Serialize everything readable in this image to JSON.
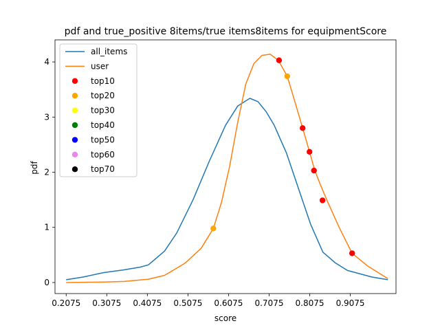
{
  "chart_data": {
    "type": "line",
    "title": "pdf and true_positive 8items/true items8items for equipmentScore",
    "xlabel": "score",
    "ylabel": "pdf",
    "xlim": [
      0.18,
      1.02
    ],
    "ylim": [
      -0.2,
      4.4
    ],
    "xticks": [
      0.2075,
      0.3075,
      0.4075,
      0.5075,
      0.6075,
      0.7075,
      0.8075,
      0.9075
    ],
    "xtick_labels": [
      "0.2075",
      "0.3075",
      "0.4075",
      "0.5075",
      "0.6075",
      "0.7075",
      "0.8075",
      "0.9075"
    ],
    "yticks": [
      0,
      1,
      2,
      3,
      4
    ],
    "ytick_labels": [
      "0",
      "1",
      "2",
      "3",
      "4"
    ],
    "grid": false,
    "legend_position": "top-left",
    "series": [
      {
        "name": "all_items",
        "kind": "line",
        "color": "#1f77b4",
        "x": [
          0.2075,
          0.25,
          0.3,
          0.35,
          0.39,
          0.41,
          0.45,
          0.48,
          0.52,
          0.56,
          0.6,
          0.63,
          0.66,
          0.68,
          0.7,
          0.72,
          0.75,
          0.78,
          0.81,
          0.84,
          0.87,
          0.9,
          0.92,
          0.96,
          1.0
        ],
        "y": [
          0.05,
          0.1,
          0.18,
          0.23,
          0.28,
          0.32,
          0.57,
          0.9,
          1.5,
          2.2,
          2.85,
          3.2,
          3.34,
          3.28,
          3.1,
          2.85,
          2.35,
          1.7,
          1.05,
          0.55,
          0.36,
          0.22,
          0.18,
          0.1,
          0.05
        ]
      },
      {
        "name": "user",
        "kind": "line",
        "color": "#ff7f0e",
        "x": [
          0.2075,
          0.3,
          0.35,
          0.41,
          0.45,
          0.5,
          0.54,
          0.57,
          0.59,
          0.61,
          0.63,
          0.65,
          0.67,
          0.69,
          0.71,
          0.73,
          0.752,
          0.77,
          0.79,
          0.807,
          0.82,
          0.835,
          0.85,
          0.88,
          0.912,
          0.95,
          1.0
        ],
        "y": [
          0.0,
          0.01,
          0.02,
          0.06,
          0.13,
          0.35,
          0.62,
          0.98,
          1.45,
          2.1,
          2.9,
          3.6,
          3.97,
          4.12,
          4.14,
          4.03,
          3.74,
          3.3,
          2.8,
          2.37,
          2.03,
          1.75,
          1.49,
          1.0,
          0.53,
          0.3,
          0.07
        ]
      },
      {
        "name": "top10",
        "kind": "scatter",
        "color": "#ff0000",
        "x": [
          0.732,
          0.79,
          0.807,
          0.818,
          0.839,
          0.912
        ],
        "y": [
          4.03,
          2.8,
          2.37,
          2.03,
          1.49,
          0.53
        ]
      },
      {
        "name": "top20",
        "kind": "scatter",
        "color": "#ffa500",
        "x": [
          0.57,
          0.752
        ],
        "y": [
          0.98,
          3.74
        ]
      },
      {
        "name": "top30",
        "kind": "scatter",
        "color": "#ffff00",
        "x": [],
        "y": []
      },
      {
        "name": "top40",
        "kind": "scatter",
        "color": "#008000",
        "x": [],
        "y": []
      },
      {
        "name": "top50",
        "kind": "scatter",
        "color": "#0000ff",
        "x": [],
        "y": []
      },
      {
        "name": "top60",
        "kind": "scatter",
        "color": "#ee82ee",
        "x": [],
        "y": []
      },
      {
        "name": "top70",
        "kind": "scatter",
        "color": "#000000",
        "x": [],
        "y": []
      }
    ]
  }
}
